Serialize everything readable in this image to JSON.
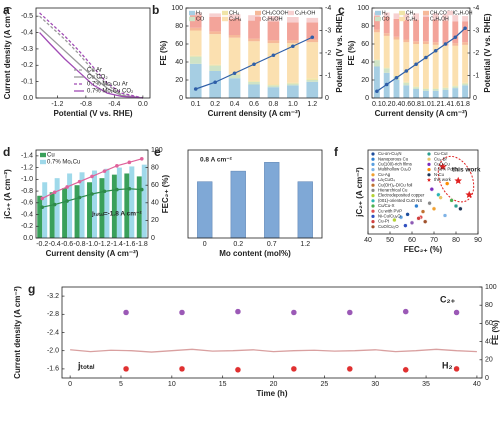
{
  "chart_data": [
    {
      "label": "a",
      "type": "line",
      "xlabel": "Potential (V vs. RHE)",
      "ylabel": "Current density (A cm⁻²)",
      "x": [
        -1.45,
        -1.3,
        -1.1,
        -0.9,
        -0.7,
        -0.5,
        -0.3,
        0
      ],
      "xlim": [
        -1.5,
        0.1
      ],
      "xticks": [
        -1.2,
        -0.8,
        -0.4,
        {
          "value": 0,
          "label": "0.0"
        }
      ],
      "ylim": [
        0,
        -0.55
      ],
      "yticks": [
        {
          "value": 0,
          "label": "0.0"
        },
        -0.1,
        -0.2,
        -0.3,
        -0.4,
        -0.5
      ],
      "series": [
        {
          "name": "Cu Ar",
          "color": "#9a9a9a",
          "dash": true,
          "values": [
            -0.5,
            -0.44,
            -0.36,
            -0.27,
            -0.17,
            -0.08,
            -0.02,
            0
          ]
        },
        {
          "name": "Cu CO₂",
          "color": "#9a9a9a",
          "values": [
            -0.43,
            -0.37,
            -0.29,
            -0.21,
            -0.13,
            -0.06,
            -0.015,
            0
          ]
        },
        {
          "name": "0.7% Mo₁Cu Ar",
          "color": "#a14bb5",
          "dash": true,
          "values": [
            -0.52,
            -0.46,
            -0.38,
            -0.29,
            -0.19,
            -0.09,
            -0.03,
            0
          ]
        },
        {
          "name": "0.7% Mo₁Cu CO₂",
          "color": "#a14bb5",
          "values": [
            -0.4,
            -0.33,
            -0.24,
            -0.16,
            -0.08,
            -0.03,
            -0.01,
            0
          ]
        }
      ]
    },
    {
      "label": "b",
      "type": "bar",
      "stacked": true,
      "xlabel": "Current density (A cm⁻²)",
      "ylabel": "FE (%)",
      "y2label": "Potential (V vs. RHE)",
      "categories": [
        "0.1",
        "0.2",
        "0.4",
        "0.6",
        "0.8",
        "1.0",
        "1.2"
      ],
      "ylim": [
        0,
        100
      ],
      "yticks": [
        0,
        20,
        40,
        60,
        80,
        100
      ],
      "y2lim": [
        0,
        -4
      ],
      "y2ticks": [
        0,
        -1,
        -2,
        -3,
        -4
      ],
      "series": [
        {
          "name": "H₂",
          "color": "#a6cee3",
          "values": [
            38,
            30,
            22,
            15,
            12,
            14,
            18
          ]
        },
        {
          "name": "CO",
          "color": "#cfe3c6",
          "values": [
            8,
            6,
            4,
            3,
            2,
            2,
            2
          ]
        },
        {
          "name": "CH₄",
          "color": "#f0e5a8",
          "values": [
            1,
            1,
            1,
            1,
            1,
            1,
            2
          ]
        },
        {
          "name": "C₂H₄",
          "color": "#fbe0b0",
          "values": [
            28,
            34,
            40,
            44,
            46,
            44,
            40
          ]
        },
        {
          "name": "CH₃COOH",
          "color": "#f6b999",
          "values": [
            3,
            3,
            3,
            3,
            3,
            3,
            3
          ]
        },
        {
          "name": "C₂H₅OH",
          "color": "#f3a49a",
          "values": [
            14,
            16,
            18,
            20,
            21,
            20,
            19
          ]
        },
        {
          "name": "C₃H₇OH",
          "color": "#f7d0d0",
          "values": [
            3,
            4,
            5,
            6,
            6,
            6,
            5
          ]
        },
        {
          "type": "line",
          "axis": "y2",
          "color": "#2f5fa8",
          "values": [
            -0.4,
            -0.7,
            -1.1,
            -1.5,
            -1.9,
            -2.3,
            -2.7
          ]
        }
      ]
    },
    {
      "label": "c",
      "type": "bar",
      "stacked": true,
      "xlabel": "Current density (A cm⁻²)",
      "ylabel": "FE (%)",
      "y2label": "Potential (V vs. RHE)",
      "categories": [
        "0.1",
        "0.2",
        "0.4",
        "0.6",
        "0.8",
        "1.0",
        "1.2",
        "1.4",
        "1.6",
        "1.8"
      ],
      "ylim": [
        0,
        100
      ],
      "yticks": [
        0,
        20,
        40,
        60,
        80,
        100
      ],
      "y2lim": [
        0,
        -4
      ],
      "y2ticks": [
        0,
        -1,
        -2,
        -3,
        -4
      ],
      "series": [
        {
          "name": "H₂",
          "color": "#a6cee3",
          "values": [
            35,
            28,
            20,
            14,
            10,
            8,
            8,
            9,
            11,
            14
          ]
        },
        {
          "name": "CO",
          "color": "#cfe3c6",
          "values": [
            7,
            5,
            4,
            3,
            2,
            2,
            2,
            2,
            2,
            2
          ]
        },
        {
          "name": "CH₄",
          "color": "#f0e5a8",
          "values": [
            1,
            1,
            1,
            1,
            1,
            1,
            1,
            1,
            1,
            1
          ]
        },
        {
          "name": "C₂H₄",
          "color": "#fbe0b0",
          "values": [
            30,
            35,
            40,
            44,
            47,
            49,
            48,
            46,
            44,
            42
          ]
        },
        {
          "name": "CH₃COOH",
          "color": "#f6b999",
          "values": [
            3,
            3,
            3,
            3,
            3,
            3,
            3,
            3,
            3,
            3
          ]
        },
        {
          "name": "C₂H₅OH",
          "color": "#f3a49a",
          "values": [
            15,
            18,
            20,
            22,
            24,
            25,
            25,
            25,
            24,
            23
          ]
        },
        {
          "name": "C₃H₇OH",
          "color": "#f7d0d0",
          "values": [
            4,
            5,
            6,
            7,
            7,
            7,
            7,
            7,
            7,
            6
          ]
        },
        {
          "type": "line",
          "axis": "y2",
          "color": "#2f5fa8",
          "values": [
            -0.3,
            -0.6,
            -0.9,
            -1.2,
            -1.5,
            -1.8,
            -2.1,
            -2.4,
            -2.7,
            -3.1
          ]
        }
      ]
    },
    {
      "label": "d",
      "type": "bar",
      "xlabel": "Current density (A cm⁻²)",
      "ylabel": "jC₂₊ (A cm⁻²)",
      "y2label": "FEC₂₊ (%)",
      "categories": [
        "-0.2",
        "-0.4",
        "-0.6",
        "-0.8",
        "-1.0",
        "-1.2",
        "-1.4",
        "-1.6",
        "-1.8"
      ],
      "ylim": [
        0,
        -1.5
      ],
      "yticks": [
        {
          "value": 0,
          "label": "0.0"
        },
        -0.2,
        -0.4,
        -0.6,
        -0.8,
        {
          "value": -1,
          "label": "-1.0"
        },
        -1.2,
        -1.4
      ],
      "y2lim": [
        0,
        100
      ],
      "y2ticks": [
        0,
        20,
        40,
        60,
        80,
        100
      ],
      "annotations": [
        "jₜₒₜₐₗ=-1.8 A cm⁻²"
      ],
      "series": [
        {
          "name": "Cu",
          "color": "#3aa05a",
          "values": [
            -0.72,
            -0.78,
            -0.85,
            -0.9,
            -0.95,
            -1.02,
            -1.08,
            -1.1,
            -1.05
          ]
        },
        {
          "name": "0.7% Mo₁Cu",
          "color": "#9fd9ea",
          "values": [
            -0.95,
            -1.02,
            -1.1,
            -1.12,
            -1.15,
            -1.18,
            -1.2,
            -1.22,
            -1.25
          ]
        },
        {
          "type": "line",
          "axis": "y2",
          "color": "#2e8b4a",
          "values": [
            35,
            38,
            42,
            46,
            50,
            53,
            55,
            56,
            55
          ]
        },
        {
          "type": "line",
          "axis": "y2",
          "color": "#e0629b",
          "values": [
            45,
            52,
            58,
            64,
            70,
            76,
            82,
            86,
            90
          ]
        }
      ]
    },
    {
      "label": "e",
      "type": "bar",
      "xlabel": "Mo content (mol%)",
      "annotations": [
        "0.8 A cm⁻²"
      ],
      "categories": [
        "0",
        "0.2",
        "0.7",
        "1.2"
      ],
      "values": [
        64,
        76,
        86,
        64
      ],
      "color": "#7fa8d6",
      "ylim": [
        0,
        100
      ]
    },
    {
      "label": "f",
      "type": "scatter",
      "xlabel": "FEC₂₊ (%)",
      "ylabel": "jC₂₊ (A cm⁻²)",
      "annotations": [
        "this work"
      ],
      "xlim": [
        40,
        90
      ],
      "xticks": [
        40,
        50,
        60,
        70,
        80,
        90
      ],
      "ylim": [
        0,
        1.5
      ],
      "series": [
        {
          "name": "Cu-on-Cu₃N",
          "color": "#1f4e9c",
          "x": [
            58
          ],
          "values": [
            0.35
          ]
        },
        {
          "name": "Nanoporous Cu",
          "color": "#2e7fd0",
          "x": [
            62
          ],
          "values": [
            0.5
          ]
        },
        {
          "name": "Cu(100)-rich films",
          "color": "#5aa0e0",
          "x": [
            55
          ],
          "values": [
            0.3
          ]
        },
        {
          "name": "Multihollow Cu₂O",
          "color": "#7fb3e6",
          "x": [
            75
          ],
          "values": [
            0.33
          ]
        },
        {
          "name": "Cu-Ag",
          "color": "#f0a030",
          "x": [
            70
          ],
          "values": [
            0.45
          ]
        },
        {
          "name": "La₂CuO₄",
          "color": "#8e5bb5",
          "x": [
            60
          ],
          "values": [
            0.2
          ]
        },
        {
          "name": "Cu(OH)₂-D/Cu foil",
          "color": "#c07030",
          "x": [
            65
          ],
          "values": [
            0.4
          ]
        },
        {
          "name": "Hierarchical Cu",
          "color": "#888888",
          "x": [
            68
          ],
          "values": [
            0.55
          ]
        },
        {
          "name": "Electrodeposited copper",
          "color": "#b5d335",
          "x": [
            52
          ],
          "values": [
            0.25
          ]
        },
        {
          "name": "(001)-oriented CuO NS",
          "color": "#2bb5b5",
          "x": [
            72
          ],
          "values": [
            0.7
          ]
        },
        {
          "name": "Cu/Cu-X",
          "color": "#4caf50",
          "x": [
            78
          ],
          "values": [
            0.6
          ]
        },
        {
          "name": "Cu with PVP",
          "color": "#e05050",
          "x": [
            64
          ],
          "values": [
            0.3
          ]
        },
        {
          "name": "Ni-Cu/Cu₂O",
          "color": "#3050c0",
          "x": [
            57
          ],
          "values": [
            0.15
          ]
        },
        {
          "name": "Cu-Pt",
          "color": "#d04040",
          "x": [
            63
          ],
          "values": [
            0.28
          ]
        },
        {
          "name": "CuO/Cu₂O",
          "color": "#a0522d",
          "x": [
            66
          ],
          "values": [
            0.22
          ]
        },
        {
          "name": "Cu-CuI",
          "color": "#2a9d8f",
          "x": [
            80
          ],
          "values": [
            0.5
          ]
        },
        {
          "name": "Cu₄-Br",
          "color": "#e9c46a",
          "x": [
            73
          ],
          "values": [
            0.65
          ]
        },
        {
          "name": "CuO-Cu",
          "color": "#7b2cbf",
          "x": [
            69
          ],
          "values": [
            0.8
          ]
        },
        {
          "name": "0.68% Pd-Cu",
          "color": "#ff8c00",
          "x": [
            76
          ],
          "values": [
            0.9
          ]
        },
        {
          "name": "N-Cu",
          "color": "#1d3557",
          "x": [
            82
          ],
          "values": [
            0.45
          ]
        },
        {
          "name": "this work",
          "color": "#e02020",
          "marker": "star",
          "x": [
            74,
            81,
            86
          ],
          "values": [
            1.2,
            0.95,
            0.7
          ]
        }
      ]
    },
    {
      "label": "g",
      "type": "line",
      "xlabel": "Time (h)",
      "ylabel": "Current density (A cm⁻²)",
      "y2label": "FE (%)",
      "annotations": [
        "C₂₊",
        "H₂",
        "jₜₒₜₐₗ"
      ],
      "x": [
        0,
        2,
        4,
        6,
        8,
        10,
        12,
        14,
        16,
        18,
        20,
        22,
        24,
        26,
        28,
        30,
        32,
        34,
        36,
        38,
        40
      ],
      "xlim": [
        -0.8,
        40.5
      ],
      "xticks": [
        0,
        5,
        10,
        15,
        20,
        25,
        30,
        35,
        40
      ],
      "ylim": [
        -1.4,
        -3.4
      ],
      "yticks": [
        -1.6,
        {
          "value": -2,
          "label": "-2.0"
        },
        -2.4,
        -2.8,
        -3.2
      ],
      "y2lim": [
        0,
        100
      ],
      "y2ticks": [
        0,
        20,
        40,
        60,
        80,
        100
      ],
      "series": [
        {
          "color": "#d9a0a0",
          "values": [
            -2.02,
            -1.98,
            -2.01,
            -2.0,
            -1.97,
            -2.0,
            -2.03,
            -1.99,
            -2.0,
            -2.02,
            -1.98,
            -2.0,
            -2.01,
            -1.99,
            -2.0,
            -2.02,
            -1.98,
            -2.0,
            -2.03,
            -2.0,
            -1.98
          ]
        },
        {
          "type": "scatter",
          "axis": "y2",
          "color": "#9b59b6",
          "x": [
            5.5,
            11,
            16.5,
            22,
            27.5,
            33,
            38
          ],
          "values": [
            72,
            72,
            73,
            72,
            72,
            73,
            72
          ]
        },
        {
          "type": "scatter",
          "axis": "y2",
          "color": "#e03030",
          "x": [
            5.5,
            11,
            16.5,
            22,
            27.5,
            33,
            38
          ],
          "values": [
            10,
            10,
            9,
            10,
            10,
            9,
            10
          ]
        }
      ]
    }
  ]
}
